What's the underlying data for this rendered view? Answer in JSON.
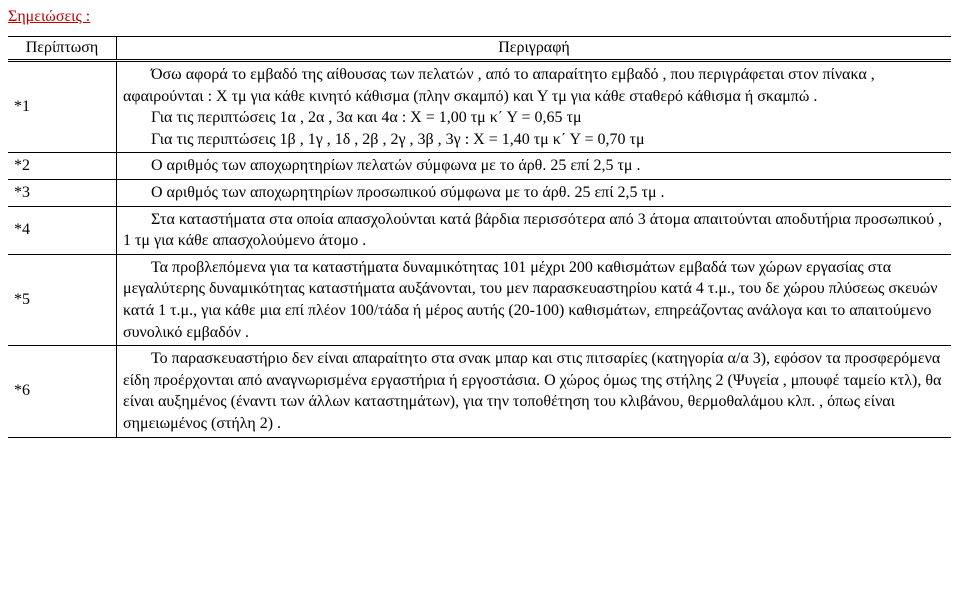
{
  "heading": "Σημειώσεις :",
  "table": {
    "headers": {
      "case": "Περίπτωση",
      "desc": "Περιγραφή"
    },
    "rows": [
      {
        "case": "*1",
        "paras": [
          {
            "cls": "indent",
            "text": "Όσω αφορά το εμβαδό της αίθουσας των πελατών , από το απαραίτητο εμβαδό , που περιγράφεται στον πίνακα , αφαιρούνται : Χ τμ για κάθε κινητό κάθισμα  (πλην σκαμπό) και Υ τμ για κάθε σταθερό κάθισμα ή σκαμπώ ."
          },
          {
            "cls": "indent",
            "text": "Για τις περιπτώσεις 1α ,  2α ,  3α  και 4α : Χ = 1,00 τμ κ΄ Υ = 0,65 τμ"
          },
          {
            "cls": "indent",
            "text": "Για τις περιπτώσεις 1β ,  1γ ,  1δ ,  2β ,  2γ ,  3β ,  3γ : Χ = 1,40 τμ κ΄ Υ = 0,70 τμ"
          }
        ]
      },
      {
        "case": "*2",
        "paras": [
          {
            "cls": "indent",
            "text": "Ο αριθμός των αποχωρητηρίων πελατών σύμφωνα με το άρθ. 25 επί 2,5 τμ ."
          }
        ]
      },
      {
        "case": "*3",
        "paras": [
          {
            "cls": "indent",
            "text": "Ο αριθμός των αποχωρητηρίων προσωπικού σύμφωνα με το άρθ. 25 επί 2,5 τμ ."
          }
        ]
      },
      {
        "case": "*4",
        "paras": [
          {
            "cls": "indent",
            "text": "Στα καταστήματα στα οποία απασχολούνται κατά βάρδια περισσότερα από 3 άτομα απαιτούνται αποδυτήρια προσωπικού , 1 τμ για κάθε απασχολούμενο άτομο ."
          }
        ]
      },
      {
        "case": "*5",
        "paras": [
          {
            "cls": "indent",
            "text": "Τα προβλεπόμενα για τα καταστήματα δυναμικότητας 101 μέχρι 200 καθισμάτων εμβαδά των χώρων εργασίας στα μεγαλύτερης δυναμικότητας καταστήματα αυξάνονται, του μεν παρασκευαστηρίου κατά 4 τ.μ., του δε χώρου πλύσεως σκευών κατά 1 τ.μ., για κάθε μια επί πλέον 100/τάδα ή μέρος αυτής (20-100) καθισμάτων, επηρεάζοντας ανάλογα και το απαιτούμενο συνολικό εμβαδόν ."
          }
        ]
      },
      {
        "case": "*6",
        "paras": [
          {
            "cls": "indent",
            "text": "Το παρασκευαστήριο δεν είναι απαραίτητο στα σνακ μπαρ και στις πιτσαρίες (κατηγορία α/α 3), εφόσον τα προσφερόμενα είδη προέρχονται από αναγνωρισμένα εργαστήρια ή εργοστάσια. Ο χώρος όμως της στήλης 2 (Ψυγεία ,  μπουφέ ταμείο κτλ), θα είναι αυξημένος (έναντι των άλλων καταστημάτων), για την τοποθέτηση του κλιβάνου, θερμοθαλάμου κλπ. , όπως είναι σημειωμένος (στήλη  2) ."
          }
        ]
      }
    ]
  }
}
